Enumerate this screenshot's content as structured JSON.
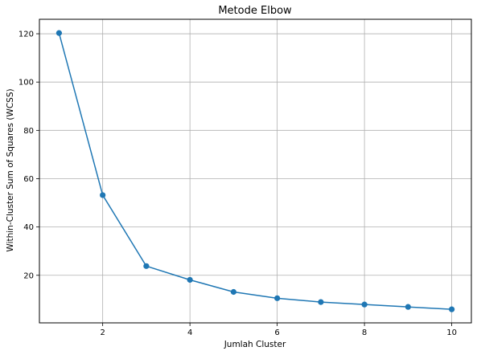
{
  "chart_data": {
    "type": "line",
    "title": "Metode Elbow",
    "xlabel": "Jumlah Cluster",
    "ylabel": "Within-Cluster Sum of Squares (WCSS)",
    "x": [
      1,
      2,
      3,
      4,
      5,
      6,
      7,
      8,
      9,
      10
    ],
    "series": [
      {
        "values": [
          120.3,
          53.2,
          23.8,
          18.1,
          13.1,
          10.5,
          8.9,
          7.9,
          6.9,
          5.9
        ]
      }
    ],
    "xlim": [
      0.55,
      10.45
    ],
    "ylim": [
      0.3,
      126.0
    ],
    "xticks": [
      "2",
      "4",
      "6",
      "8",
      "10"
    ],
    "yticks": [
      "20",
      "40",
      "60",
      "80",
      "100",
      "120"
    ],
    "grid": true,
    "marker": "circle",
    "colors": {
      "line": "#1f77b4",
      "grid": "#b0b0b0",
      "axes": "#000000"
    }
  }
}
